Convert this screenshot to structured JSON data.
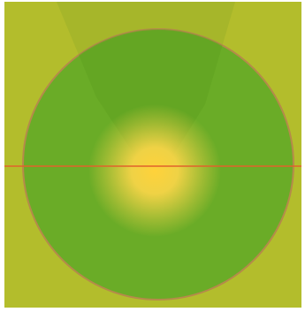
{
  "colors": {
    "frame": "#ffffff",
    "background": "#b3bd2c",
    "cone": "#8ea828",
    "disc_fill": "#6aac27",
    "disc_outline": "#b58a4a",
    "glow_center": "#ffd23a",
    "glow_mid": "#f6d447",
    "horizon_line": "#e1632b"
  }
}
